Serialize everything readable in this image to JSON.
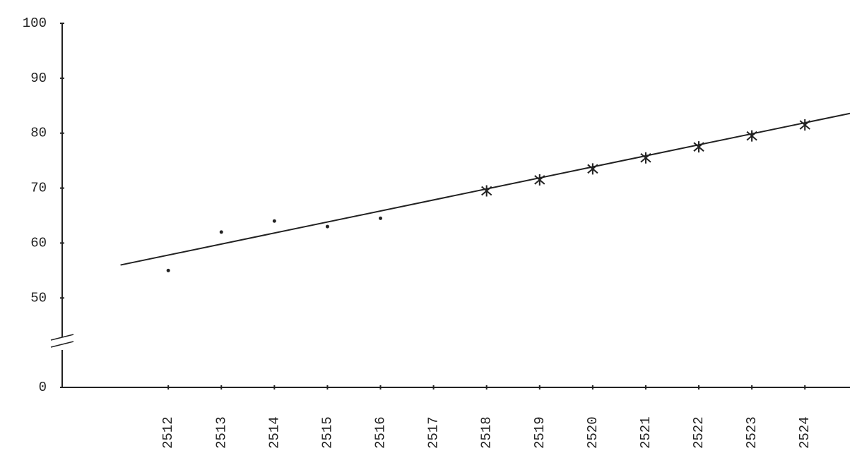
{
  "chart_data": {
    "type": "line",
    "xlim": [
      2510,
      2524.85
    ],
    "xticks": [
      2512,
      2513,
      2514,
      2515,
      2516,
      2517,
      2518,
      2519,
      2520,
      2521,
      2522,
      2523,
      2524
    ],
    "ylim": [
      0,
      100
    ],
    "yticks": [
      0,
      50,
      60,
      70,
      80,
      90,
      100
    ],
    "axis_break": [
      0,
      44
    ],
    "series": [
      {
        "marker": "dot",
        "color": "#222222",
        "x": [
          2512,
          2513,
          2514,
          2515,
          2516
        ],
        "values": [
          55,
          62,
          64,
          63,
          64.5
        ]
      },
      {
        "marker": "star",
        "color": "#222222",
        "x": [
          2518,
          2519,
          2520,
          2521,
          2522,
          2523,
          2524
        ],
        "values": [
          69.5,
          71.5,
          73.5,
          75.5,
          77.5,
          79.5,
          81.5
        ]
      },
      {
        "marker": "none",
        "color": "#222222",
        "x": [
          2511.1,
          2524.85
        ],
        "values": [
          56,
          83.6
        ]
      }
    ]
  }
}
